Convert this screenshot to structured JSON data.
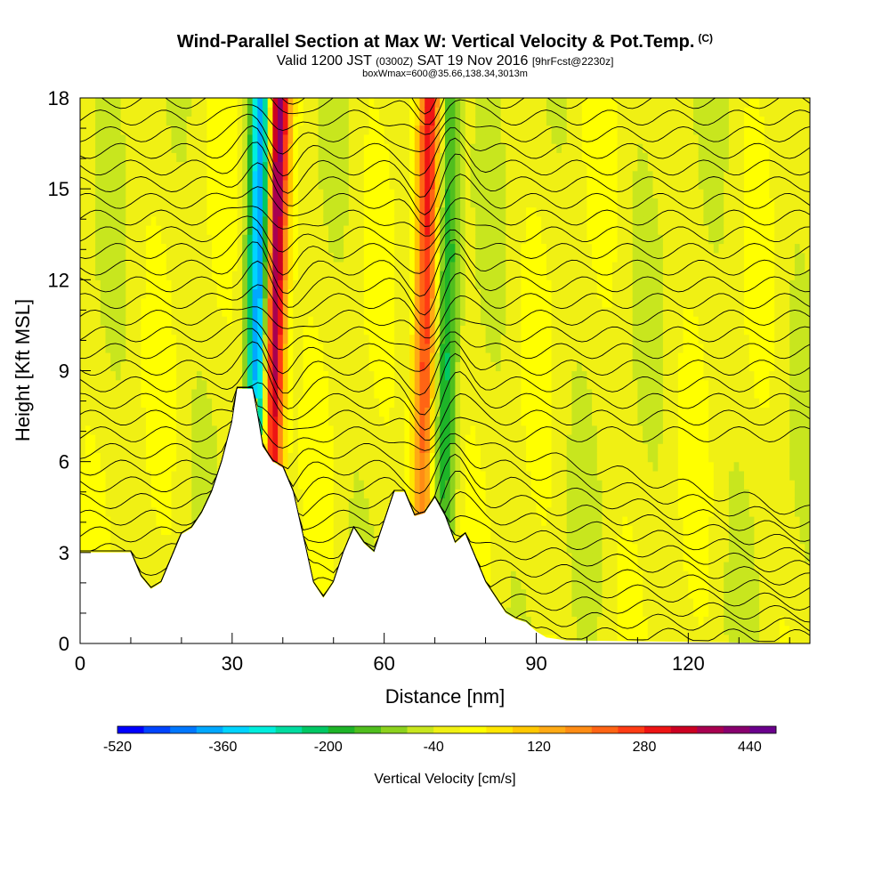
{
  "header": {
    "title": "Wind-Parallel Section at Max W: Vertical Velocity & Pot.Temp.",
    "title_tag": "(C)",
    "subtitle_main": "Valid 1200 JST",
    "subtitle_zulu": "(0300Z)",
    "subtitle_date": "SAT 19 Nov 2016",
    "subtitle_fcst": "[9hrFcst@2230z]",
    "subtitle_box": "boxWmax=600@35.66,138.34,3013m"
  },
  "chart_data": {
    "type": "heatmap",
    "xlabel": "Distance [nm]",
    "ylabel": "Height [Kft MSL]",
    "xlim": [
      0,
      144
    ],
    "ylim": [
      0,
      18
    ],
    "x_ticks": [
      0,
      30,
      60,
      90,
      120
    ],
    "y_ticks": [
      0,
      3,
      6,
      9,
      12,
      15,
      18
    ],
    "terrain_profile_kft": [
      [
        0,
        3.0
      ],
      [
        10,
        3.0
      ],
      [
        12,
        2.2
      ],
      [
        14,
        1.8
      ],
      [
        16,
        2.0
      ],
      [
        18,
        2.8
      ],
      [
        20,
        3.6
      ],
      [
        22,
        3.8
      ],
      [
        24,
        4.3
      ],
      [
        26,
        5.0
      ],
      [
        28,
        6.0
      ],
      [
        30,
        7.3
      ],
      [
        31,
        8.4
      ],
      [
        34,
        8.4
      ],
      [
        35,
        7.5
      ],
      [
        36,
        6.5
      ],
      [
        38,
        6.0
      ],
      [
        40,
        5.8
      ],
      [
        42,
        5.0
      ],
      [
        44,
        3.5
      ],
      [
        46,
        2.0
      ],
      [
        48,
        1.5
      ],
      [
        50,
        2.0
      ],
      [
        52,
        3.0
      ],
      [
        54,
        3.8
      ],
      [
        56,
        3.3
      ],
      [
        58,
        3.0
      ],
      [
        60,
        4.0
      ],
      [
        62,
        5.0
      ],
      [
        64,
        5.0
      ],
      [
        66,
        4.2
      ],
      [
        68,
        4.3
      ],
      [
        70,
        4.8
      ],
      [
        72,
        4.2
      ],
      [
        74,
        3.3
      ],
      [
        76,
        3.6
      ],
      [
        78,
        2.8
      ],
      [
        80,
        2.0
      ],
      [
        82,
        1.5
      ],
      [
        84,
        1.0
      ],
      [
        86,
        0.8
      ],
      [
        88,
        0.7
      ],
      [
        90,
        0.4
      ],
      [
        92,
        0.2
      ],
      [
        96,
        0.1
      ],
      [
        144,
        0.0
      ]
    ],
    "updraft_bands": [
      {
        "center_nm_at_top": 39.0,
        "center_nm_at_bottom": 37.0,
        "sign": "up",
        "peak_cm_s": 600
      },
      {
        "center_nm_at_top": 36.0,
        "center_nm_at_bottom": 34.5,
        "sign": "down",
        "peak_cm_s": -500
      },
      {
        "center_nm_at_top": 69.0,
        "center_nm_at_bottom": 67.0,
        "sign": "up",
        "peak_cm_s": 380
      },
      {
        "center_nm_at_top": 73.0,
        "center_nm_at_bottom": 71.5,
        "sign": "down",
        "peak_cm_s": -220
      }
    ],
    "colorbar": {
      "label": "Vertical Velocity [cm/s]",
      "tick_labels": [
        "-520",
        "-360",
        "-200",
        "-40",
        "120",
        "280",
        "440"
      ],
      "colors": [
        "#0000ff",
        "#0044ff",
        "#0077ff",
        "#00a8ff",
        "#00d4ff",
        "#00eedd",
        "#00dca0",
        "#00c864",
        "#1eb428",
        "#50be1e",
        "#8cd21e",
        "#c8e61e",
        "#f0f014",
        "#ffff00",
        "#ffe600",
        "#ffc800",
        "#ffaa14",
        "#ff8c14",
        "#ff6414",
        "#ff3c14",
        "#ee1414",
        "#cc0022",
        "#a80050",
        "#88006e",
        "#6a008c"
      ],
      "background_color": "#ffff00",
      "grid_on": false
    },
    "contour_field": "Pot.Temp.",
    "contour_count": 34
  }
}
